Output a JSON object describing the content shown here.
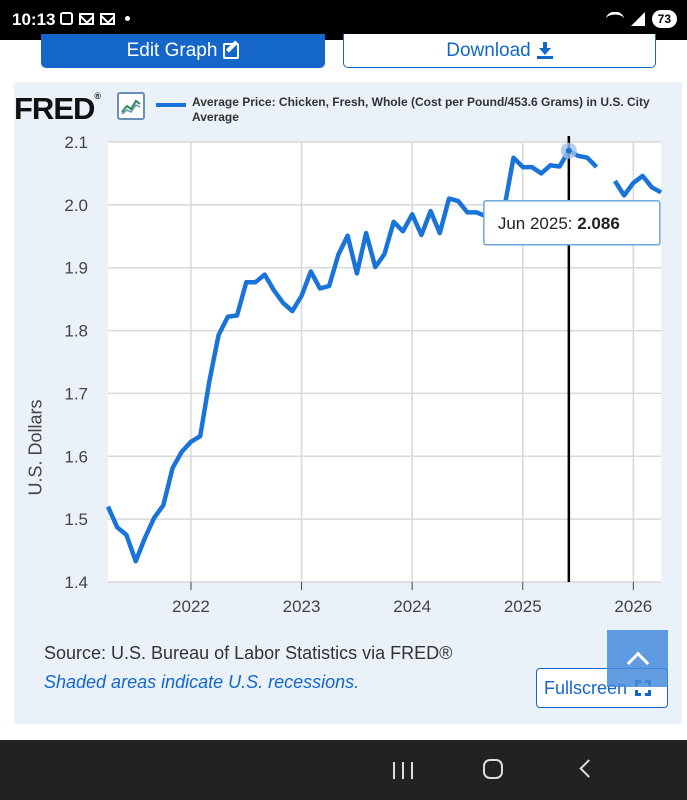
{
  "status_bar": {
    "time": "10:13",
    "battery": "73"
  },
  "toolbar": {
    "edit_label": "Edit Graph",
    "download_label": "Download"
  },
  "graph": {
    "logo": "FRED",
    "logo_mark": "®",
    "legend_label": "Average Price: Chicken, Fresh, Whole (Cost per Pound/453.6 Grams) in U.S. City Average",
    "ylabel": "U.S. Dollars",
    "source": "Source: U.S. Bureau of Labor Statistics via FRED®",
    "recession_note": "Shaded areas indicate U.S. recessions.",
    "fullscreen_label": "Fullscreen"
  },
  "chart_data": {
    "type": "line",
    "title": "",
    "xlabel": "",
    "ylabel": "U.S. Dollars",
    "ylim": [
      1.4,
      2.1
    ],
    "xlim": [
      "2021-04",
      "2026-04"
    ],
    "yticks": [
      "1.4",
      "1.5",
      "1.6",
      "1.7",
      "1.8",
      "1.9",
      "2.0",
      "2.1"
    ],
    "xticks": [
      "2022",
      "2023",
      "2024",
      "2025",
      "2026"
    ],
    "grid": true,
    "series": [
      {
        "name": "Average Price: Chicken, Fresh, Whole (Cost per Pound/453.6 Grams) in U.S. City Average",
        "color": "#1a73d9",
        "points": [
          [
            "2021-04",
            1.52
          ],
          [
            "2021-05",
            1.487
          ],
          [
            "2021-06",
            1.475
          ],
          [
            "2021-07",
            1.433
          ],
          [
            "2021-08",
            1.47
          ],
          [
            "2021-09",
            1.502
          ],
          [
            "2021-10",
            1.522
          ],
          [
            "2021-11",
            1.581
          ],
          [
            "2021-12",
            1.607
          ],
          [
            "2022-01",
            1.623
          ],
          [
            "2022-02",
            1.632
          ],
          [
            "2022-03",
            1.72
          ],
          [
            "2022-04",
            1.793
          ],
          [
            "2022-05",
            1.822
          ],
          [
            "2022-06",
            1.824
          ],
          [
            "2022-07",
            1.877
          ],
          [
            "2022-08",
            1.877
          ],
          [
            "2022-09",
            1.889
          ],
          [
            "2022-10",
            1.864
          ],
          [
            "2022-11",
            1.844
          ],
          [
            "2022-12",
            1.831
          ],
          [
            "2023-01",
            1.855
          ],
          [
            "2023-02",
            1.894
          ],
          [
            "2023-03",
            1.867
          ],
          [
            "2023-04",
            1.871
          ],
          [
            "2023-05",
            1.921
          ],
          [
            "2023-06",
            1.951
          ],
          [
            "2023-07",
            1.891
          ],
          [
            "2023-08",
            1.955
          ],
          [
            "2023-09",
            1.901
          ],
          [
            "2023-10",
            1.922
          ],
          [
            "2023-11",
            1.973
          ],
          [
            "2023-12",
            1.958
          ],
          [
            "2024-01",
            1.985
          ],
          [
            "2024-02",
            1.952
          ],
          [
            "2024-03",
            1.99
          ],
          [
            "2024-04",
            1.955
          ],
          [
            "2024-05",
            2.01
          ],
          [
            "2024-06",
            2.006
          ],
          [
            "2024-07",
            1.988
          ],
          [
            "2024-08",
            1.988
          ],
          [
            "2024-09",
            1.982
          ],
          [
            "2024-10",
            1.984
          ],
          [
            "2024-11",
            1.995
          ],
          [
            "2024-12",
            2.075
          ],
          [
            "2025-01",
            2.06
          ],
          [
            "2025-02",
            2.06
          ],
          [
            "2025-03",
            2.05
          ],
          [
            "2025-04",
            2.063
          ],
          [
            "2025-05",
            2.061
          ],
          [
            "2025-06",
            2.086
          ],
          [
            "2025-07",
            2.078
          ],
          [
            "2025-08",
            2.075
          ],
          [
            "2025-09",
            2.06
          ],
          [
            "2025-10",
            null
          ],
          [
            "2025-11",
            2.038
          ],
          [
            "2025-12",
            2.015
          ],
          [
            "2026-01",
            2.035
          ],
          [
            "2026-02",
            2.046
          ],
          [
            "2026-03",
            2.028
          ],
          [
            "2026-04",
            2.02
          ]
        ]
      }
    ],
    "tooltip": {
      "date": "Jun 2025",
      "value": "2.086",
      "label": "Jun 2025:"
    }
  }
}
